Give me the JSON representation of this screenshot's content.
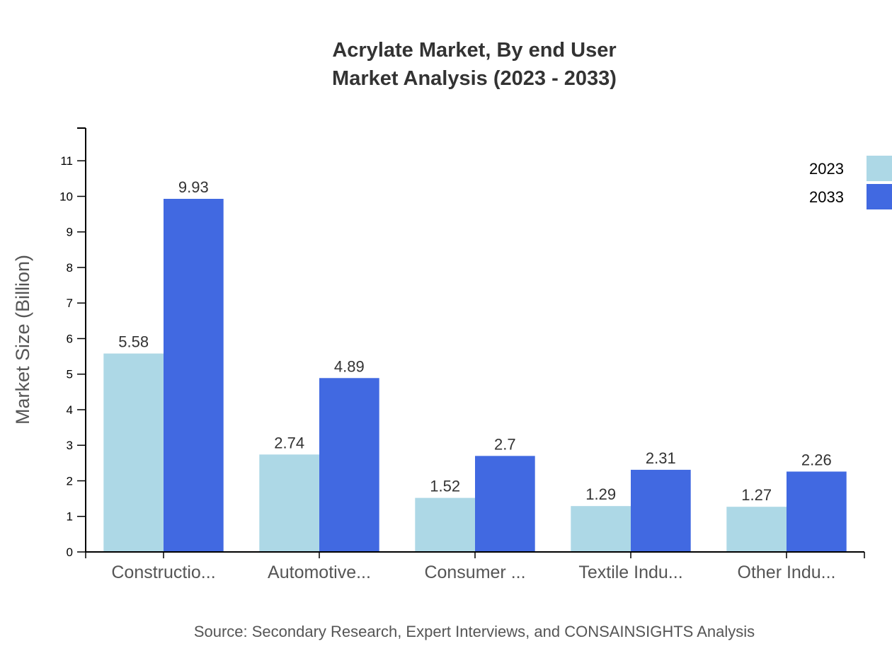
{
  "chart_data": {
    "type": "bar",
    "title_lines": [
      "Acrylate Market, By end User",
      "Market Analysis (2023 - 2033)"
    ],
    "xlabel": "",
    "ylabel": "Market Size (Billion)",
    "categories": [
      "Constructio...",
      "Automotive...",
      "Consumer ...",
      "Textile Indu...",
      "Other Indu..."
    ],
    "series": [
      {
        "name": "2023",
        "color": "#ADD8E6",
        "values": [
          5.58,
          2.74,
          1.52,
          1.29,
          1.27
        ]
      },
      {
        "name": "2033",
        "color": "#4169E1",
        "values": [
          9.93,
          4.89,
          2.7,
          2.31,
          2.26
        ]
      }
    ],
    "ylim": [
      0,
      11.92
    ],
    "yticks": [
      0,
      1,
      2,
      3,
      4,
      5,
      6,
      7,
      8,
      9,
      10,
      11
    ],
    "grid": false,
    "legend": "top-right",
    "data_labels": true
  },
  "source": "Source: Secondary Research, Expert Interviews, and CONSAINSIGHTS Analysis"
}
